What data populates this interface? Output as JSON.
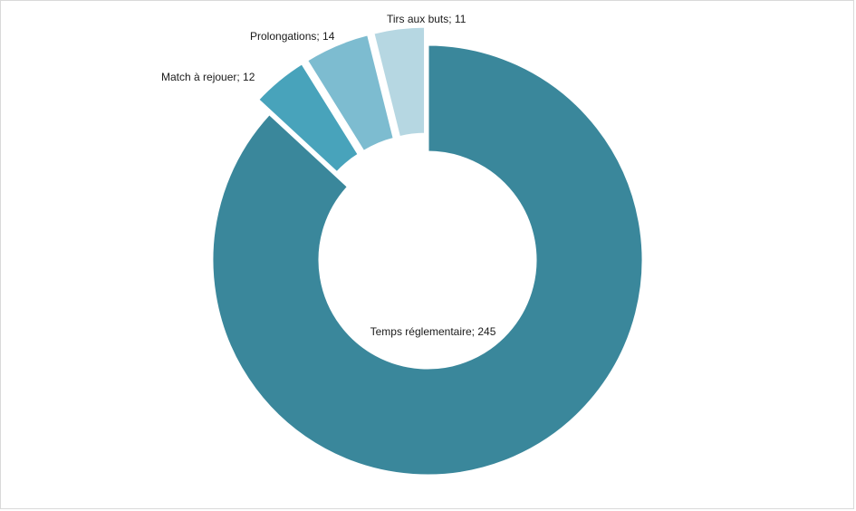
{
  "chart_data": {
    "type": "pie",
    "variant": "donut",
    "title": "",
    "slices": [
      {
        "label": "Temps réglementaire; 245",
        "category": "Temps réglementaire",
        "value": 245,
        "color": "#3a879b",
        "exploded": false
      },
      {
        "label": "Match à rejouer; 12",
        "category": "Match à rejouer",
        "value": 12,
        "color": "#48a3bb",
        "exploded": true
      },
      {
        "label": "Prolongations; 14",
        "category": "Prolongations",
        "value": 14,
        "color": "#7dbcd0",
        "exploded": true
      },
      {
        "label": "Tirs aux buts; 11",
        "category": "Tirs aux buts",
        "value": 11,
        "color": "#b6d7e2",
        "exploded": true
      }
    ],
    "legend": "none"
  }
}
